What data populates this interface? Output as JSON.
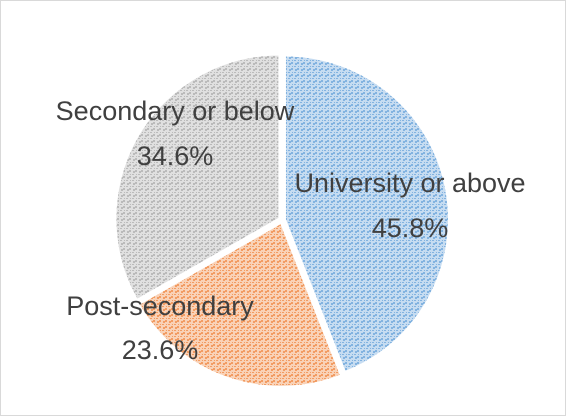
{
  "chart_data": {
    "type": "pie",
    "categories": [
      "University or above",
      "Post-secondary",
      "Secondary or below"
    ],
    "values": [
      45.8,
      23.6,
      34.6
    ],
    "value_labels": [
      "45.8%",
      "23.6%",
      "34.6%"
    ],
    "colors": [
      "#5b9bd5",
      "#ed7d31",
      "#a5a5a5"
    ]
  }
}
